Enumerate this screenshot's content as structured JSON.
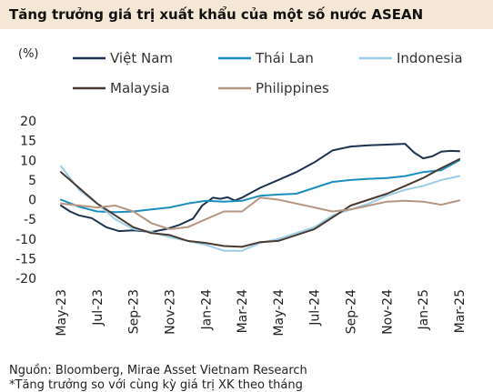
{
  "title": "Tăng trưởng giá trị xuất khẩu của một số nước ASEAN",
  "source": "Nguồn: Bloomberg, Mirae Asset Vietnam Research",
  "note": "*Tăng trưởng so với cùng kỳ giá trị XK theo tháng",
  "chart_data": {
    "type": "line",
    "unit_label": "(%)",
    "ylim": [
      -20,
      20
    ],
    "yticks": [
      20,
      15,
      10,
      5,
      0,
      -5,
      -10,
      -15,
      -20
    ],
    "xlim": [
      0,
      22
    ],
    "x_tick_labels": [
      "May-23",
      "Jul-23",
      "Sep-23",
      "Nov-23",
      "Jan-24",
      "Mar-24",
      "May-24",
      "Jul-24",
      "Sep-24",
      "Nov-24",
      "Jan-25",
      "Mar-25"
    ],
    "x_tick_positions": [
      0,
      2,
      4,
      6,
      8,
      10,
      12,
      14,
      16,
      18,
      20,
      22
    ],
    "legend_placement": "top",
    "series": [
      {
        "name": "Việt Nam",
        "color": "#1c3250",
        "points": [
          [
            0,
            -1.5
          ],
          [
            0.5,
            -3
          ],
          [
            1,
            -4
          ],
          [
            1.7,
            -4.7
          ],
          [
            2.5,
            -7
          ],
          [
            3.2,
            -8
          ],
          [
            4,
            -7.8
          ],
          [
            5,
            -8.2
          ],
          [
            5.8,
            -7.5
          ],
          [
            6.5,
            -6.5
          ],
          [
            7.3,
            -4.8
          ],
          [
            7.8,
            -1.5
          ],
          [
            8.4,
            0.5
          ],
          [
            8.8,
            0.2
          ],
          [
            9.2,
            0.6
          ],
          [
            9.6,
            -0.2
          ],
          [
            10,
            0.5
          ],
          [
            11,
            3
          ],
          [
            12,
            5
          ],
          [
            13,
            7
          ],
          [
            14,
            9.5
          ],
          [
            15,
            12.5
          ],
          [
            16,
            13.5
          ],
          [
            17,
            13.8
          ],
          [
            18,
            14
          ],
          [
            19,
            14.2
          ],
          [
            19.5,
            12
          ],
          [
            20,
            10.5
          ],
          [
            20.5,
            11
          ],
          [
            21,
            12.2
          ],
          [
            21.5,
            12.4
          ],
          [
            22,
            12.3
          ]
        ]
      },
      {
        "name": "Thái Lan",
        "color": "#1b8ec0",
        "points": [
          [
            0,
            0
          ],
          [
            1,
            -1.8
          ],
          [
            2,
            -3
          ],
          [
            3,
            -3.2
          ],
          [
            4,
            -3
          ],
          [
            5,
            -2.5
          ],
          [
            6,
            -2
          ],
          [
            7,
            -1
          ],
          [
            8,
            -0.3
          ],
          [
            9,
            -0.5
          ],
          [
            10,
            -0.3
          ],
          [
            11,
            1
          ],
          [
            12,
            1.3
          ],
          [
            13,
            1.5
          ],
          [
            14,
            3
          ],
          [
            15,
            4.5
          ],
          [
            16,
            5
          ],
          [
            17,
            5.3
          ],
          [
            18,
            5.5
          ],
          [
            19,
            6
          ],
          [
            20,
            7
          ],
          [
            21,
            7.5
          ],
          [
            22,
            10
          ]
        ]
      },
      {
        "name": "Indonesia",
        "color": "#9ccde6",
        "points": [
          [
            0,
            8.5
          ],
          [
            1,
            2.5
          ],
          [
            2,
            -1
          ],
          [
            3,
            -5
          ],
          [
            4,
            -7.5
          ],
          [
            5,
            -8.2
          ],
          [
            6,
            -9.5
          ],
          [
            7,
            -10.5
          ],
          [
            8,
            -11.5
          ],
          [
            9,
            -13
          ],
          [
            10,
            -13
          ],
          [
            11,
            -11
          ],
          [
            12,
            -10
          ],
          [
            13,
            -8.5
          ],
          [
            14,
            -7
          ],
          [
            15,
            -4
          ],
          [
            16,
            -2.5
          ],
          [
            17,
            -1
          ],
          [
            18,
            1
          ],
          [
            19,
            2.5
          ],
          [
            20,
            3.5
          ],
          [
            21,
            5
          ],
          [
            22,
            6
          ]
        ]
      },
      {
        "name": "Malaysia",
        "color": "#4a3a30",
        "points": [
          [
            0,
            7
          ],
          [
            1,
            3
          ],
          [
            2,
            -1
          ],
          [
            3,
            -4
          ],
          [
            4,
            -7
          ],
          [
            5,
            -8.5
          ],
          [
            6,
            -9
          ],
          [
            7,
            -10.5
          ],
          [
            8,
            -11
          ],
          [
            9,
            -11.8
          ],
          [
            10,
            -12
          ],
          [
            11,
            -10.8
          ],
          [
            12,
            -10.5
          ],
          [
            13,
            -9
          ],
          [
            14,
            -7.5
          ],
          [
            15,
            -4.5
          ],
          [
            16,
            -1.5
          ],
          [
            17,
            0
          ],
          [
            18,
            1.5
          ],
          [
            19,
            3.5
          ],
          [
            20,
            5.5
          ],
          [
            21,
            8
          ],
          [
            22,
            10.3
          ]
        ]
      },
      {
        "name": "Philippines",
        "color": "#b59680",
        "points": [
          [
            0,
            -1
          ],
          [
            1,
            -1.5
          ],
          [
            2,
            -2
          ],
          [
            3,
            -1.5
          ],
          [
            4,
            -3
          ],
          [
            5,
            -6
          ],
          [
            6,
            -7.5
          ],
          [
            7,
            -7
          ],
          [
            8,
            -5
          ],
          [
            9,
            -3
          ],
          [
            10,
            -3
          ],
          [
            11,
            0.5
          ],
          [
            12,
            0
          ],
          [
            13,
            -1
          ],
          [
            14,
            -2
          ],
          [
            15,
            -3
          ],
          [
            16,
            -2.5
          ],
          [
            17,
            -1.5
          ],
          [
            18,
            -0.5
          ],
          [
            19,
            -0.3
          ],
          [
            20,
            -0.5
          ],
          [
            21,
            -1.3
          ],
          [
            22,
            -0.2
          ]
        ]
      }
    ]
  }
}
